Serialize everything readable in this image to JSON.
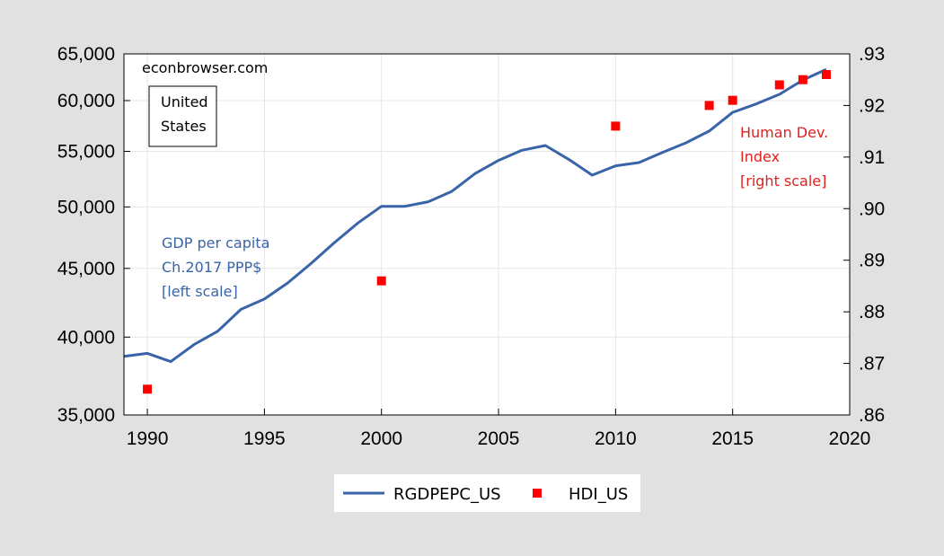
{
  "chart_data": {
    "type": "line",
    "x_ticks": [
      "1990",
      "1995",
      "2000",
      "2005",
      "2010",
      "2015",
      "2020"
    ],
    "xlim": [
      1989,
      2020
    ],
    "y_left": {
      "scale": "log",
      "lim": [
        35000,
        65000
      ],
      "ticks": [
        35000,
        40000,
        45000,
        50000,
        55000,
        60000,
        65000
      ],
      "tick_labels": [
        "35,000",
        "40,000",
        "45,000",
        "50,000",
        "55,000",
        "60,000",
        "65,000"
      ]
    },
    "y_right": {
      "scale": "linear",
      "lim": [
        0.86,
        0.93
      ],
      "ticks": [
        0.86,
        0.87,
        0.88,
        0.89,
        0.9,
        0.91,
        0.92,
        0.93
      ],
      "tick_labels": [
        ".86",
        ".87",
        ".88",
        ".89",
        ".90",
        ".91",
        ".92",
        ".93"
      ]
    },
    "grid": true,
    "legend_position": "bottom",
    "series": [
      {
        "name": "RGDPEPC_US",
        "type": "line",
        "axis": "left",
        "color": "#3a64a8",
        "x": [
          1989,
          1990,
          1991,
          1992,
          1993,
          1994,
          1995,
          1996,
          1997,
          1998,
          1999,
          2000,
          2001,
          2002,
          2003,
          2004,
          2005,
          2006,
          2007,
          2008,
          2009,
          2010,
          2011,
          2012,
          2013,
          2014,
          2015,
          2016,
          2017,
          2018,
          2019
        ],
        "values": [
          38700,
          38900,
          38350,
          39500,
          40400,
          41950,
          42700,
          43900,
          45400,
          47050,
          48650,
          50050,
          50050,
          50450,
          51350,
          52950,
          54150,
          55100,
          55550,
          54250,
          52800,
          53650,
          53950,
          54900,
          55800,
          56950,
          58800,
          59650,
          60650,
          62150,
          63300
        ]
      },
      {
        "name": "HDI_US",
        "type": "scatter",
        "axis": "right",
        "color": "#ff0000",
        "x": [
          1990,
          2000,
          2010,
          2014,
          2015,
          2017,
          2018,
          2019
        ],
        "values": [
          0.865,
          0.886,
          0.916,
          0.92,
          0.921,
          0.924,
          0.925,
          0.926
        ]
      }
    ],
    "annotations": {
      "source": "econbrowser.com",
      "country": [
        "United",
        "States"
      ],
      "gdp_label": [
        "GDP per capita",
        "Ch.2017 PPP$",
        "[left scale]"
      ],
      "hdi_label": [
        "Human Dev.",
        "Index",
        "[right scale]"
      ]
    },
    "legend": [
      "RGDPEPC_US",
      "HDI_US"
    ]
  }
}
